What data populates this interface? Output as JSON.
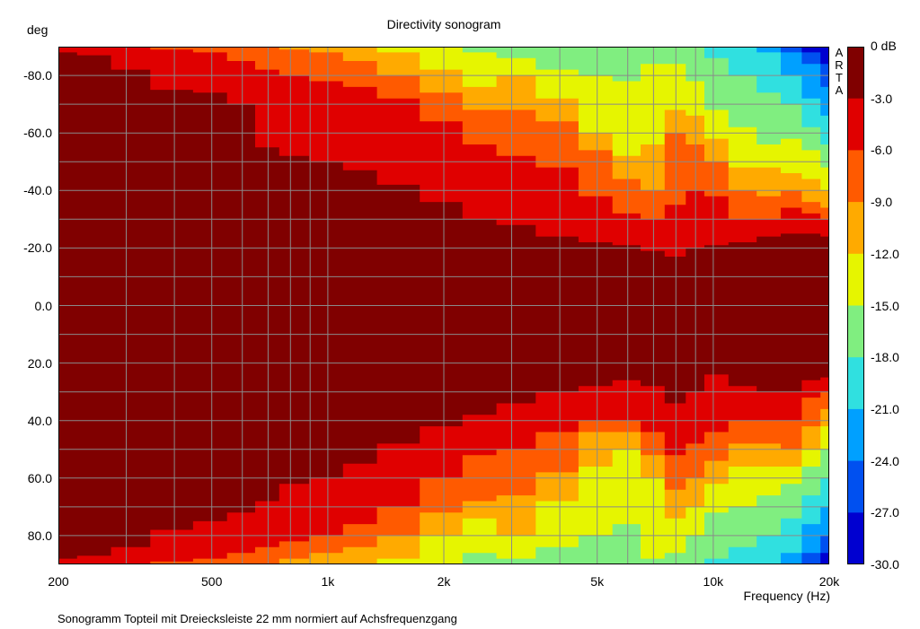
{
  "chart_data": {
    "type": "heatmap",
    "title": "Directivity sonogram",
    "ylabel": "deg",
    "xlabel": "Frequency (Hz)",
    "caption": "Sonogramm Topteil mit Dreiecksleiste 22 mm normiert auf Achsfrequenzgang",
    "watermark": "ARTA",
    "x_scale": "log",
    "xlim": [
      200,
      20000
    ],
    "ylim": [
      -90,
      90
    ],
    "y_ticks": [
      "-80.0",
      "-60.0",
      "-40.0",
      "-20.0",
      "0.0",
      "20.0",
      "40.0",
      "60.0",
      "80.0"
    ],
    "x_ticks": [
      {
        "value": 200,
        "label": "200"
      },
      {
        "value": 500,
        "label": "500"
      },
      {
        "value": 1000,
        "label": "1k"
      },
      {
        "value": 2000,
        "label": "2k"
      },
      {
        "value": 5000,
        "label": "5k"
      },
      {
        "value": 10000,
        "label": "10k"
      },
      {
        "value": 20000,
        "label": "20k"
      }
    ],
    "colorbar": {
      "unit": "dB",
      "labels": [
        "0 dB",
        "-3.0",
        "-6.0",
        "-9.0",
        "-12.0",
        "-15.0",
        "-18.0",
        "-21.0",
        "-24.0",
        "-27.0",
        "-30.0"
      ],
      "colors": [
        "#800000",
        "#e00000",
        "#ff5a00",
        "#ffaa00",
        "#e6f500",
        "#80ee80",
        "#30e0e0",
        "#00a0ff",
        "#0050f0",
        "#0000d0"
      ]
    },
    "contour_angles_deg": {
      "freqs_hz": [
        200,
        250,
        300,
        400,
        500,
        600,
        700,
        800,
        1000,
        1200,
        1500,
        2000,
        2500,
        3000,
        4000,
        5000,
        6000,
        7000,
        8000,
        9000,
        10000,
        12000,
        14000,
        16000,
        18000,
        20000
      ],
      "top_-3dB": [
        88,
        87,
        82,
        75,
        74,
        70,
        55,
        52,
        50,
        47,
        42,
        36,
        30,
        28,
        24,
        22,
        21,
        19,
        17,
        20,
        21,
        22,
        24,
        25,
        25,
        24
      ],
      "top_-6dB": [
        90,
        90,
        90,
        89,
        88,
        85,
        82,
        80,
        78,
        76,
        72,
        64,
        56,
        52,
        48,
        38,
        32,
        30,
        35,
        40,
        38,
        30,
        30,
        34,
        32,
        30
      ],
      "top_-9dB": [
        90,
        90,
        90,
        90,
        90,
        90,
        90,
        89,
        88,
        85,
        80,
        74,
        68,
        68,
        64,
        54,
        44,
        40,
        60,
        56,
        50,
        40,
        38,
        40,
        36,
        34
      ],
      "top_-12dB": [
        90,
        90,
        90,
        90,
        90,
        90,
        90,
        90,
        90,
        90,
        88,
        82,
        76,
        80,
        72,
        60,
        52,
        56,
        68,
        66,
        58,
        48,
        48,
        46,
        44,
        40
      ],
      "top_-15dB": [
        90,
        90,
        90,
        90,
        90,
        90,
        90,
        90,
        90,
        90,
        90,
        90,
        88,
        86,
        82,
        80,
        78,
        84,
        84,
        78,
        68,
        62,
        56,
        58,
        54,
        48
      ],
      "top_-18dB": [
        90,
        90,
        90,
        90,
        90,
        90,
        90,
        90,
        90,
        90,
        90,
        90,
        90,
        90,
        90,
        90,
        90,
        90,
        90,
        90,
        86,
        80,
        74,
        70,
        62,
        56
      ],
      "top_-21dB": [
        90,
        90,
        90,
        90,
        90,
        90,
        90,
        90,
        90,
        90,
        90,
        90,
        90,
        90,
        90,
        90,
        90,
        90,
        90,
        90,
        90,
        90,
        88,
        80,
        72,
        66
      ],
      "top_-24dB": [
        90,
        90,
        90,
        90,
        90,
        90,
        90,
        90,
        90,
        90,
        90,
        90,
        90,
        90,
        90,
        90,
        90,
        90,
        90,
        90,
        90,
        90,
        90,
        88,
        84,
        76
      ],
      "top_-27dB": [
        90,
        90,
        90,
        90,
        90,
        90,
        90,
        90,
        90,
        90,
        90,
        90,
        90,
        90,
        90,
        90,
        90,
        90,
        90,
        90,
        90,
        90,
        90,
        90,
        88,
        84
      ],
      "bottom_-3dB": [
        88,
        87,
        84,
        78,
        75,
        72,
        68,
        62,
        60,
        55,
        48,
        42,
        38,
        34,
        30,
        28,
        26,
        28,
        34,
        30,
        24,
        28,
        30,
        30,
        26,
        25
      ],
      "bottom_-6dB": [
        90,
        90,
        90,
        89,
        88,
        86,
        84,
        82,
        80,
        76,
        70,
        60,
        52,
        50,
        44,
        40,
        40,
        44,
        52,
        48,
        44,
        40,
        40,
        40,
        32,
        30
      ],
      "bottom_-9dB": [
        90,
        90,
        90,
        90,
        90,
        90,
        90,
        88,
        86,
        84,
        80,
        72,
        68,
        66,
        58,
        44,
        44,
        52,
        64,
        60,
        54,
        48,
        48,
        50,
        42,
        36
      ],
      "bottom_-12dB": [
        90,
        90,
        90,
        90,
        90,
        90,
        90,
        90,
        90,
        90,
        88,
        80,
        74,
        80,
        68,
        56,
        50,
        60,
        74,
        70,
        62,
        56,
        56,
        56,
        50,
        42
      ],
      "bottom_-15dB": [
        90,
        90,
        90,
        90,
        90,
        90,
        90,
        90,
        90,
        90,
        90,
        90,
        86,
        88,
        84,
        80,
        76,
        88,
        86,
        80,
        72,
        70,
        66,
        62,
        56,
        50
      ],
      "bottom_-18dB": [
        90,
        90,
        90,
        90,
        90,
        90,
        90,
        90,
        90,
        90,
        90,
        90,
        90,
        90,
        90,
        90,
        90,
        90,
        90,
        90,
        88,
        84,
        80,
        74,
        66,
        60
      ],
      "bottom_-21dB": [
        90,
        90,
        90,
        90,
        90,
        90,
        90,
        90,
        90,
        90,
        90,
        90,
        90,
        90,
        90,
        90,
        90,
        90,
        90,
        90,
        90,
        90,
        90,
        86,
        76,
        70
      ],
      "bottom_-24dB": [
        90,
        90,
        90,
        90,
        90,
        90,
        90,
        90,
        90,
        90,
        90,
        90,
        90,
        90,
        90,
        90,
        90,
        90,
        90,
        90,
        90,
        90,
        90,
        90,
        86,
        80
      ],
      "bottom_-27dB": [
        90,
        90,
        90,
        90,
        90,
        90,
        90,
        90,
        90,
        90,
        90,
        90,
        90,
        90,
        90,
        90,
        90,
        90,
        90,
        90,
        90,
        90,
        90,
        90,
        90,
        86
      ]
    }
  }
}
